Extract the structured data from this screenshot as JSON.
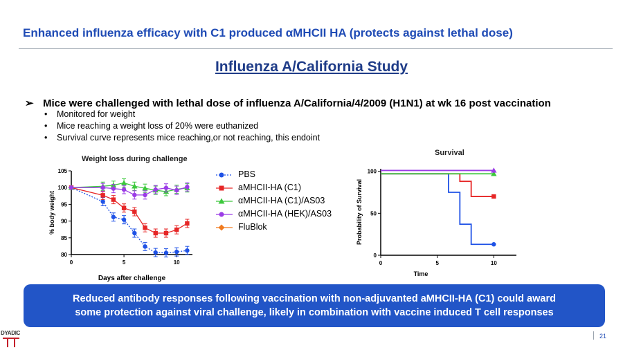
{
  "header": {
    "title": "Enhanced influenza efficacy with C1 produced αMHCII HA (protects against lethal dose)",
    "subtitle": "Influenza A/California Study"
  },
  "content": {
    "lead": "Mice were challenged with lethal dose of influenza A/California/4/2009 (H1N1) at wk 16 post vaccination",
    "bullets": [
      "Monitored for weight",
      "Mice reaching a weight loss of 20% were euthanized",
      "Survival curve represents mice reaching,or not reaching, this endoint"
    ]
  },
  "legend": {
    "items": [
      {
        "label": "PBS",
        "color": "#1f52e6",
        "marker": "circle"
      },
      {
        "label": "aMHCII-HA (C1)",
        "color": "#e62626",
        "marker": "square"
      },
      {
        "label": "αMHCII-HA (C1)/AS03",
        "color": "#3cc83c",
        "marker": "triangle"
      },
      {
        "label": "αMHCII-HA  (HEK)/AS03",
        "color": "#9b3ce6",
        "marker": "circle"
      },
      {
        "label": "FluBlok",
        "color": "#f07a1e",
        "marker": "diamond"
      }
    ]
  },
  "chart_data": [
    {
      "type": "line",
      "title": "Weight loss during challenge",
      "xlabel": "Days after challenge",
      "ylabel": "% body weight",
      "xlim": [
        0,
        11.5
      ],
      "ylim": [
        80,
        105
      ],
      "xticks": [
        "0",
        "5",
        "10"
      ],
      "yticks": [
        "80",
        "85",
        "90",
        "95",
        "100",
        "105"
      ],
      "series": [
        {
          "name": "PBS",
          "color": "#1f52e6",
          "marker": "circle",
          "dashed": true,
          "x": [
            0,
            3,
            4,
            5,
            6,
            7,
            8,
            9,
            10,
            11
          ],
          "y": [
            100,
            95.8,
            91.2,
            90.4,
            86.4,
            82.4,
            80.6,
            80.5,
            80.8,
            81.2
          ]
        },
        {
          "name": "aMHCII-HA (C1)",
          "color": "#e62626",
          "marker": "square",
          "x": [
            0,
            3,
            4,
            5,
            6,
            7,
            8,
            9,
            10,
            11
          ],
          "y": [
            100,
            97.7,
            96.4,
            93.9,
            92.8,
            88.0,
            86.4,
            86.4,
            87.4,
            89.3
          ]
        },
        {
          "name": "αMHCII-HA (C1)/AS03",
          "color": "#3cc83c",
          "marker": "triangle",
          "x": [
            0,
            3,
            4,
            5,
            6,
            7,
            8,
            9,
            10,
            11
          ],
          "y": [
            100,
            100.4,
            100.7,
            101.4,
            100.4,
            99.8,
            99.2,
            98.8,
            99.5,
            99.9
          ]
        },
        {
          "name": "αMHCII-HA  (HEK)/AS03",
          "color": "#9b3ce6",
          "marker": "circle",
          "x": [
            0,
            3,
            4,
            5,
            6,
            7,
            8,
            9,
            10,
            11
          ],
          "y": [
            100,
            100.0,
            99.7,
            99.4,
            97.8,
            97.8,
            99.4,
            99.9,
            99.2,
            100.2
          ]
        }
      ]
    },
    {
      "type": "line",
      "title": "Survival",
      "xlabel": "Time",
      "ylabel": "Probability of Survival",
      "xlim": [
        0,
        12
      ],
      "ylim": [
        0,
        103
      ],
      "xticks": [
        "0",
        "5",
        "10"
      ],
      "yticks": [
        "0",
        "50",
        "100"
      ],
      "series": [
        {
          "name": "PBS",
          "color": "#1f52e6",
          "marker": "circle",
          "x": [
            0,
            6,
            6,
            7,
            7,
            8,
            8,
            10
          ],
          "y": [
            97,
            97,
            75,
            75,
            37,
            37,
            13,
            13
          ]
        },
        {
          "name": "aMHCII-HA (C1)",
          "color": "#e62626",
          "marker": "square",
          "x": [
            0,
            7,
            7,
            8,
            8,
            10
          ],
          "y": [
            97,
            97,
            88,
            88,
            70,
            70
          ]
        },
        {
          "name": "αMHCII-HA (C1)/AS03",
          "color": "#3cc83c",
          "marker": "triangle",
          "x": [
            0,
            10
          ],
          "y": [
            97,
            97
          ]
        },
        {
          "name": "αMHCII-HA  (HEK)/AS03",
          "color": "#9b3ce6",
          "marker": "triangle",
          "x": [
            0,
            10
          ],
          "y": [
            101,
            101
          ]
        }
      ]
    }
  ],
  "banner": {
    "line1": "Reduced antibody responses following vaccination with non-adjuvanted aMHCII-HA  (C1) could award",
    "line2": "some protection against viral challenge, likely in combination with vaccine induced T cell responses"
  },
  "footer": {
    "page": "21",
    "logo_text": "DYADIC"
  }
}
